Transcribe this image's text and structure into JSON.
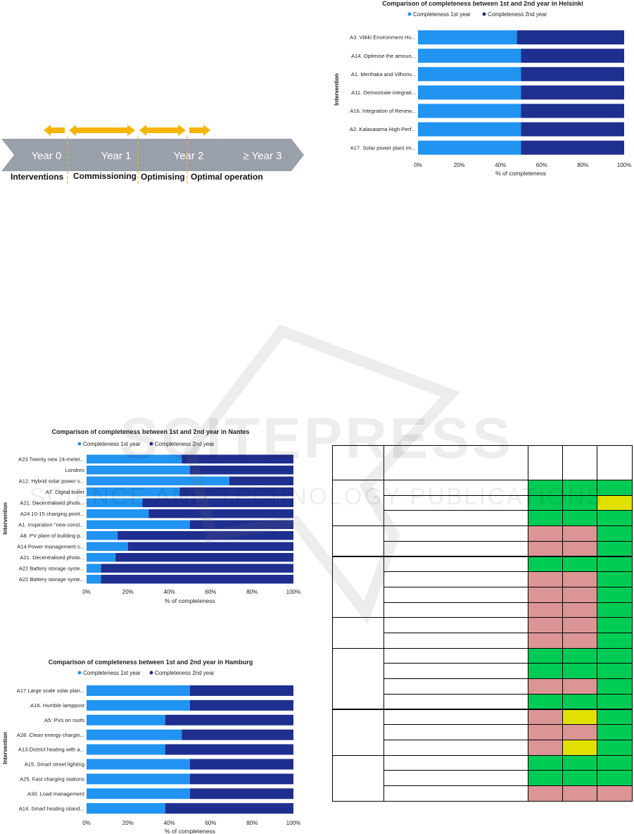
{
  "timeline": {
    "stages": [
      "Year 0",
      "Year 1",
      "Year 2",
      "≥ Year 3"
    ],
    "phases": [
      "Interventions",
      "Commissioning",
      "Optimising",
      "Optimal operation"
    ],
    "colors": {
      "chevron": "#9aa0aa",
      "arrow": "#f5b400",
      "dash": "#f5b400"
    }
  },
  "colors": {
    "first": "#2193f0",
    "second": "#1f2f8f",
    "green": "#00cc55",
    "red": "#dc9595",
    "yellow": "#e1e100"
  },
  "charts_common": {
    "legend_first": "Completeness 1st year",
    "legend_second": "Completeness 2nd year",
    "ylabel": "Intervention",
    "xlabel": "% of completeness",
    "ticks": [
      "0%",
      "20%",
      "40%",
      "60%",
      "80%",
      "100%"
    ]
  },
  "chart_data": [
    {
      "type": "bar",
      "stacked": true,
      "orientation": "horizontal",
      "title": "Comparison of completeness between 1st and 2nd year in Helsinki",
      "categories": [
        "A3. Viikki Environment Ho...",
        "A14. Optimise the amoun...",
        "A1. Merihaka and Vilhonv...",
        "A11. Demostrate integrati...",
        "A16. Integration of Renew...",
        "A2. Kalasatama High-Perf...",
        "A17. Solar power plant im..."
      ],
      "series": [
        {
          "name": "Completeness 1st year",
          "values": [
            48,
            50,
            50,
            50,
            50,
            50,
            50
          ]
        },
        {
          "name": "Completeness 2nd year",
          "values": [
            52,
            50,
            50,
            50,
            50,
            50,
            50
          ]
        }
      ],
      "xlim": [
        0,
        100
      ],
      "legend": "top"
    },
    {
      "type": "bar",
      "stacked": true,
      "orientation": "horizontal",
      "title": "Comparison of completeness between 1st and 2nd year in Nantes",
      "categories": [
        "A23 Twenty new 24-meter...",
        "Londres",
        "A12. Hybrid solar power s...",
        "A7. Digital boiler",
        "A21. Decentralised photo...",
        "A24 10-15 charging point...",
        "A1. Inspiration \"new const...",
        "A8. PV plant of building p...",
        "A14 Power management s...",
        "A21. Decentralised photo...",
        "A22 Battery storage syste...",
        "A22 Battery storage syste..."
      ],
      "series": [
        {
          "name": "Completeness 1st year",
          "values": [
            46,
            50,
            69,
            45,
            27,
            30,
            50,
            15,
            20,
            14,
            7,
            7
          ]
        },
        {
          "name": "Completeness 2nd year",
          "values": [
            54,
            50,
            31,
            55,
            73,
            70,
            50,
            85,
            80,
            86,
            93,
            93
          ]
        }
      ],
      "xlim": [
        0,
        100
      ],
      "legend": "top"
    },
    {
      "type": "bar",
      "stacked": true,
      "orientation": "horizontal",
      "title": "Comparison of completeness between 1st and 2nd year in Hamburg",
      "categories": [
        "A17 Large scale solar plan...",
        "A16. Humble lamppost",
        "A5: PVs on roofs",
        "A28. Clean energy chargin...",
        "A13.District heating with a...",
        "A15. Smart street lighting",
        "A25. Fast charging stations",
        "A30. Load management",
        "A14. Smart heating island..."
      ],
      "series": [
        {
          "name": "Completeness 1st year",
          "values": [
            50,
            50,
            38,
            46,
            38,
            50,
            50,
            50,
            38
          ]
        },
        {
          "name": "Completeness 2nd year",
          "values": [
            50,
            50,
            62,
            54,
            62,
            50,
            50,
            50,
            62
          ]
        }
      ],
      "xlim": [
        0,
        100
      ],
      "legend": "top"
    }
  ],
  "status_table": {
    "group_row_spans": [
      3,
      2,
      4,
      2,
      4,
      3,
      3
    ],
    "rows": [
      [
        "green",
        "green",
        "green"
      ],
      [
        "green",
        "green",
        "yellow"
      ],
      [
        "green",
        "green",
        "green"
      ],
      [
        "red",
        "red",
        "green"
      ],
      [
        "red",
        "red",
        "green"
      ],
      [
        "green",
        "green",
        "green"
      ],
      [
        "red",
        "red",
        "green"
      ],
      [
        "red",
        "red",
        "green"
      ],
      [
        "red",
        "red",
        "green"
      ],
      [
        "red",
        "red",
        "green"
      ],
      [
        "red",
        "red",
        "green"
      ],
      [
        "green",
        "green",
        "green"
      ],
      [
        "green",
        "green",
        "green"
      ],
      [
        "red",
        "red",
        "green"
      ],
      [
        "green",
        "green",
        "green"
      ],
      [
        "red",
        "yellow",
        "green"
      ],
      [
        "red",
        "red",
        "green"
      ],
      [
        "red",
        "yellow",
        "green"
      ],
      [
        "green",
        "green",
        "green"
      ],
      [
        "green",
        "green",
        "green"
      ],
      [
        "red",
        "red",
        "red"
      ]
    ]
  },
  "watermark": {
    "line1": "SCITEPRESS",
    "line2": "SCIENCE AND TECHNOLOGY PUBLICATIONS"
  }
}
